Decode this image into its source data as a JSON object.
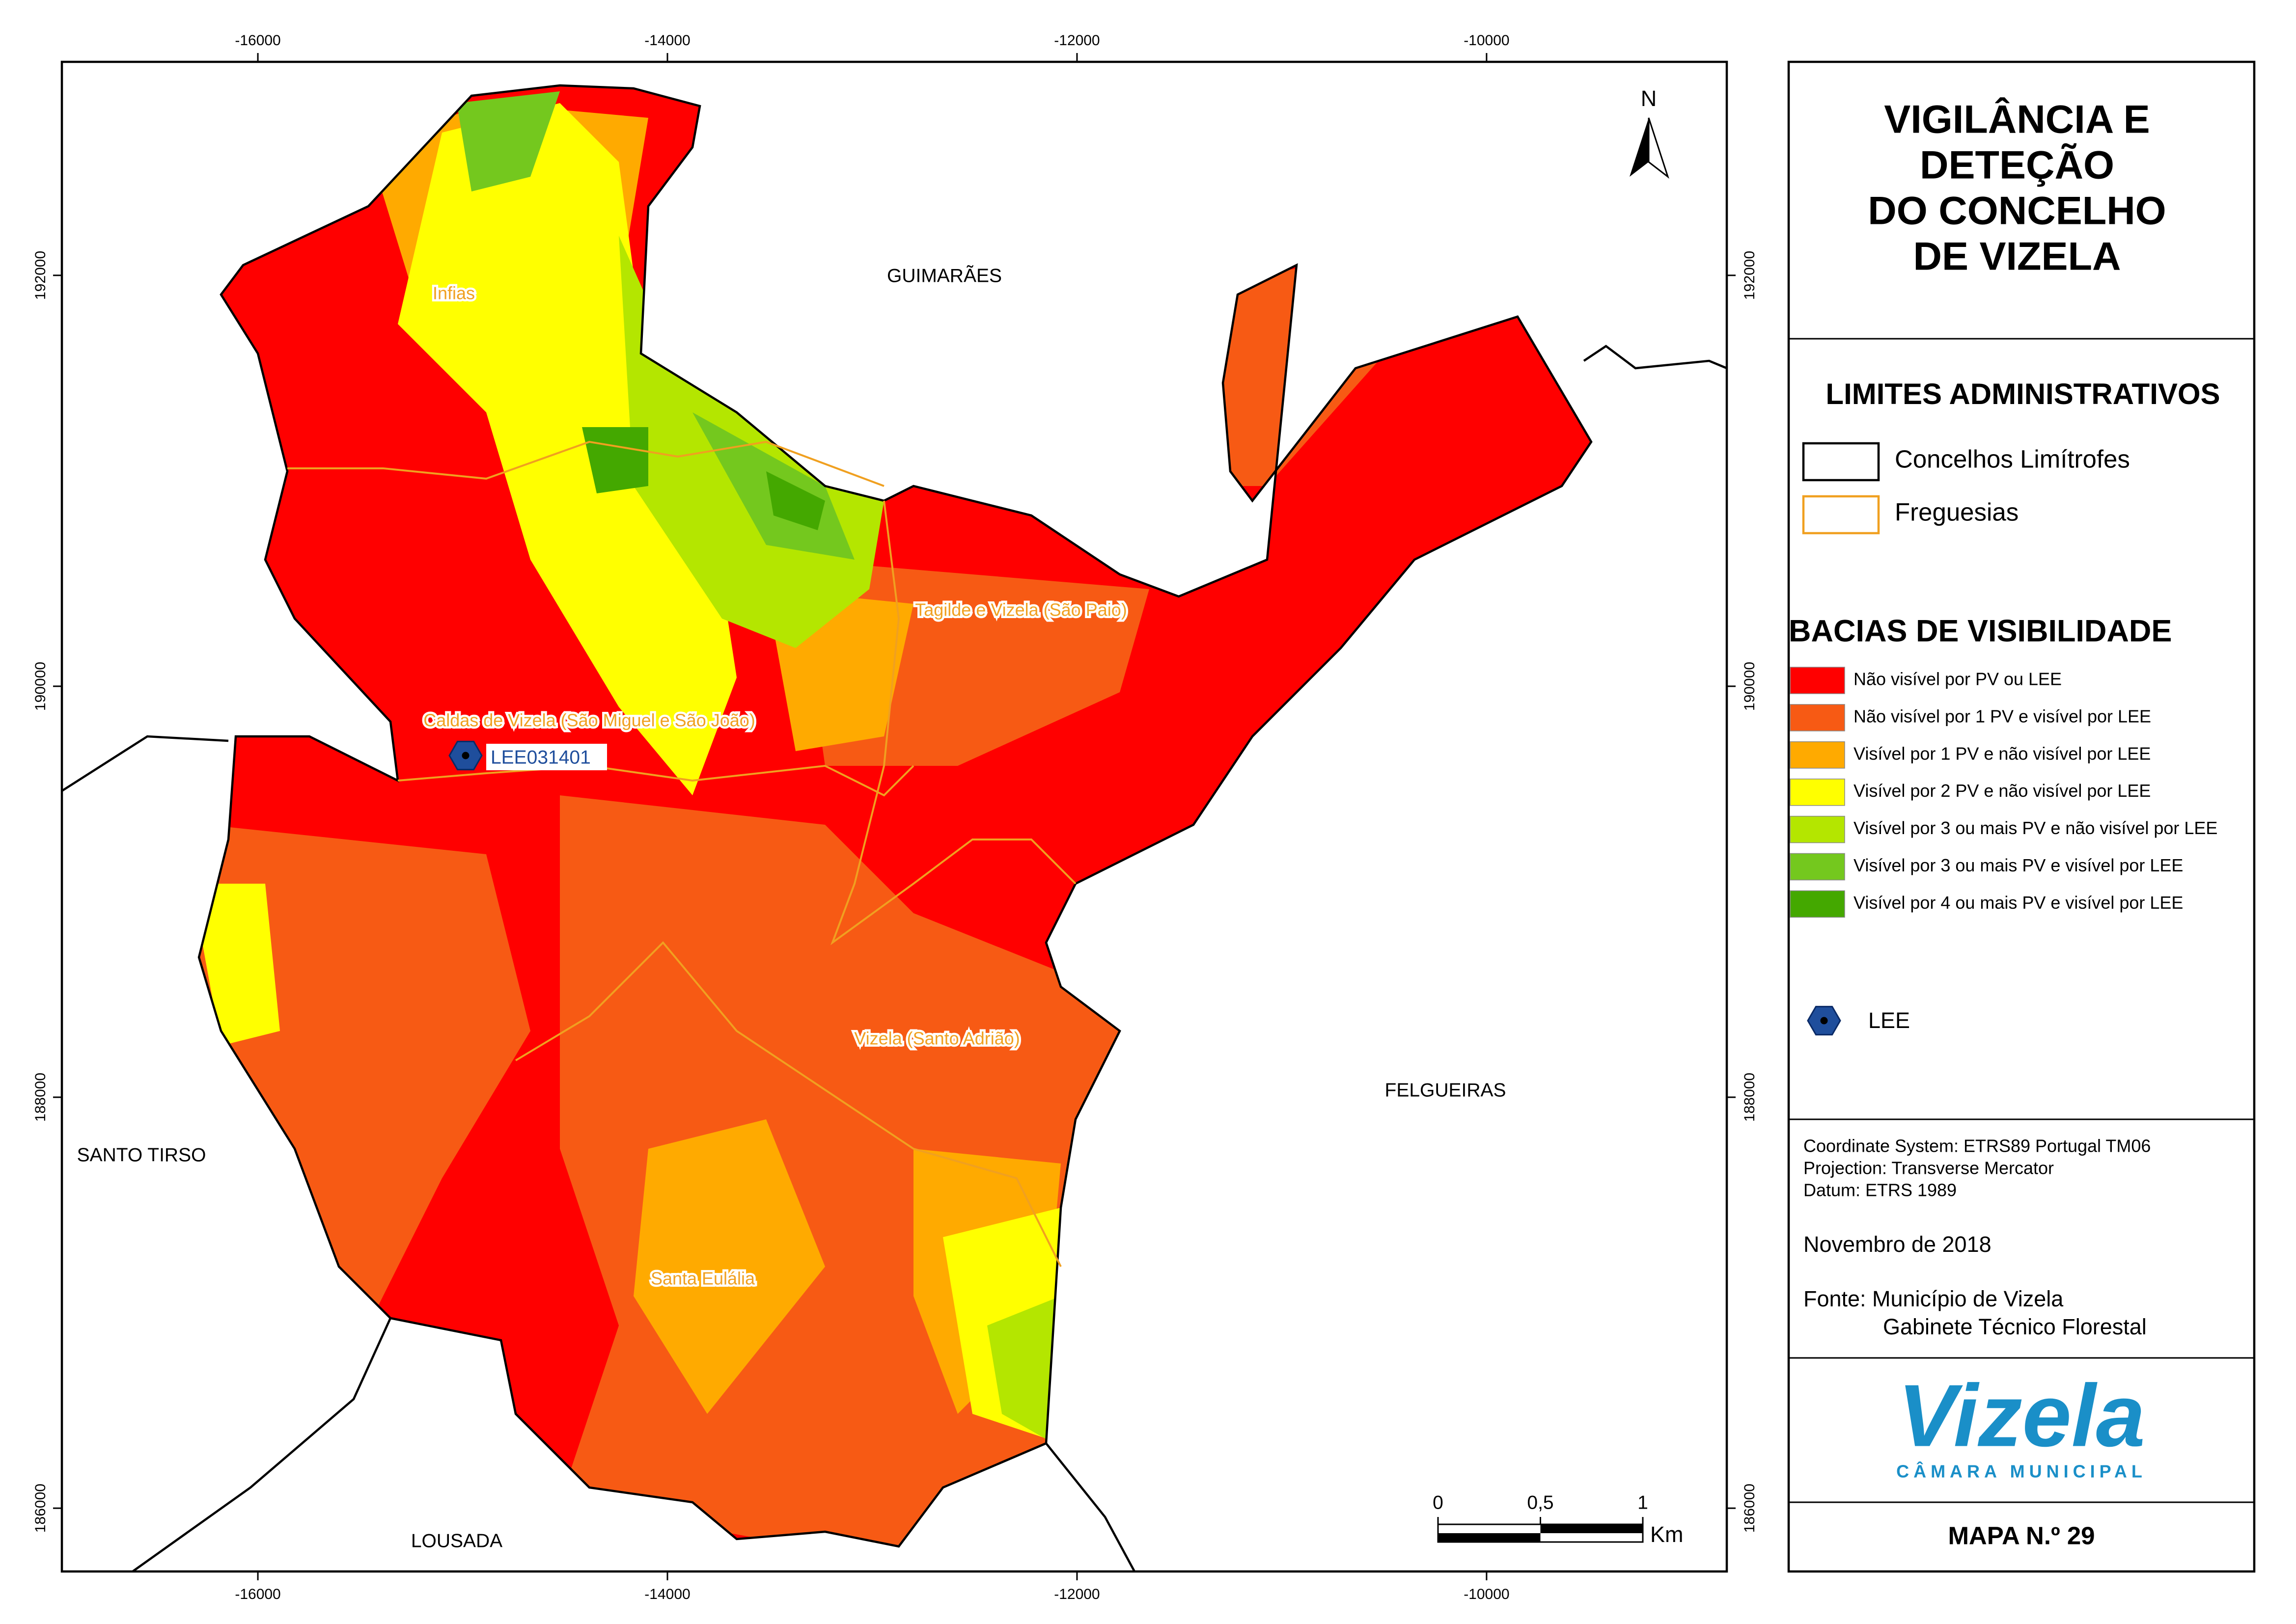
{
  "map": {
    "xlim": [
      -16957,
      -8827
    ],
    "ylim": [
      185692,
      193039
    ],
    "xticks": [
      -16000,
      -14000,
      -12000,
      -10000
    ],
    "yticks": [
      186000,
      188000,
      190000,
      192000
    ],
    "north": "N",
    "places": [
      "Infias",
      "Tagilde e Vizela (São Paio)",
      "Caldas de Vizela (São Miguel e São João)",
      "Vizela (Santo Adrião)",
      "Santa Eulália"
    ],
    "neighbors": [
      "GUIMARÃES",
      "FELGUEIRAS",
      "SANTO TIRSO",
      "LOUSADA"
    ],
    "lee_point": "LEE031401",
    "scale_bar": {
      "ticks": [
        0,
        {
          "value": 0.5,
          "label": "0,5"
        },
        1
      ],
      "unit": "Km"
    }
  },
  "panel": {
    "title": [
      "VIGILÂNCIA E",
      "DETEÇÃO",
      "DO CONCELHO",
      "DE VIZELA"
    ],
    "limits_heading": "LIMITES ADMINISTRATIVOS",
    "limits": [
      {
        "label": "Concelhos Limítrofes",
        "color": "#000000"
      },
      {
        "label": "Freguesias",
        "color": "#f0a020"
      }
    ],
    "visibility_heading": "BACIAS DE VISIBILIDADE",
    "visibility": [
      {
        "label": "Não visível por PV ou LEE",
        "color": "#ff0000"
      },
      {
        "label": "Não visível por 1 PV e visível por LEE",
        "color": "#f75a14"
      },
      {
        "label": "Visível por 1 PV e não visível por LEE",
        "color": "#ffaa00"
      },
      {
        "label": "Visível por 2 PV e não visível por LEE",
        "color": "#ffff00"
      },
      {
        "label": "Visível por 3 ou mais PV e não visível por LEE",
        "color": "#b4e600"
      },
      {
        "label": "Visível por 3 ou mais PV e visível por LEE",
        "color": "#74c81e"
      },
      {
        "label": "Visível por 4 ou mais PV e visível por LEE",
        "color": "#44a800"
      }
    ],
    "lee_legend": "LEE",
    "info": [
      "Coordinate System: ETRS89 Portugal TM06",
      "Projection: Transverse Mercator",
      "Datum: ETRS 1989"
    ],
    "date": "Novembro de 2018",
    "source": [
      "Fonte: Município de Vizela",
      "Gabinete Técnico Florestal"
    ],
    "logo": "Vizela",
    "logo_sub": "CÂMARA MUNICIPAL",
    "map_number": "MAPA N.º 29"
  }
}
